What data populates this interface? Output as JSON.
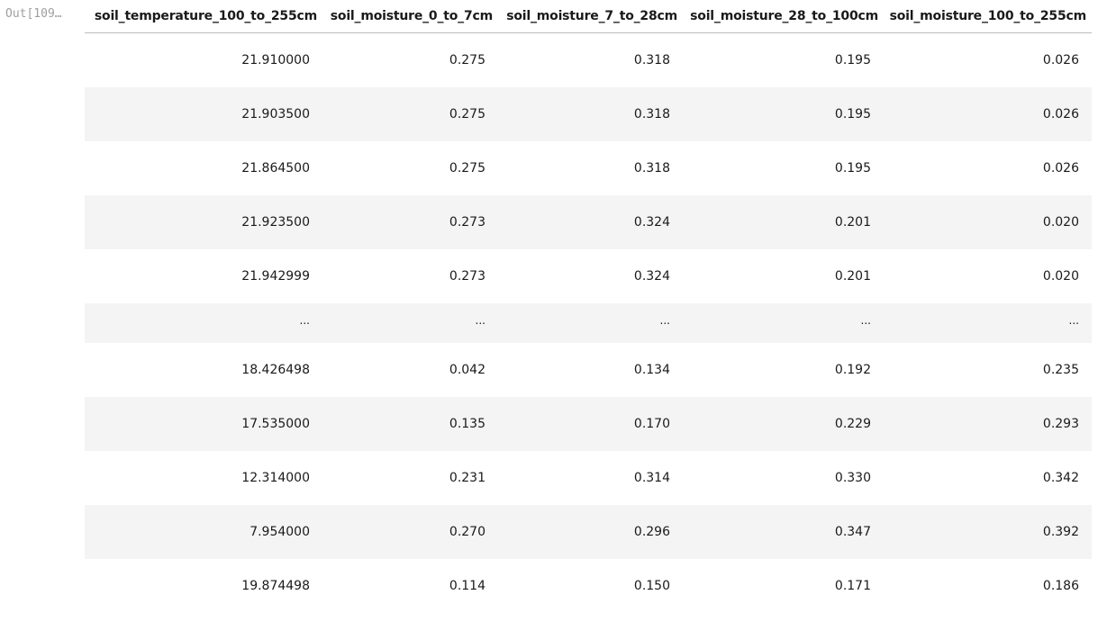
{
  "prompt": "Out[109…",
  "columns": [
    "soil_temperature_100_to_255cm",
    "soil_moisture_0_to_7cm",
    "soil_moisture_7_to_28cm",
    "soil_moisture_28_to_100cm",
    "soil_moisture_100_to_255cm"
  ],
  "rows": [
    [
      "21.910000",
      "0.275",
      "0.318",
      "0.195",
      "0.026"
    ],
    [
      "21.903500",
      "0.275",
      "0.318",
      "0.195",
      "0.026"
    ],
    [
      "21.864500",
      "0.275",
      "0.318",
      "0.195",
      "0.026"
    ],
    [
      "21.923500",
      "0.273",
      "0.324",
      "0.201",
      "0.020"
    ],
    [
      "21.942999",
      "0.273",
      "0.324",
      "0.201",
      "0.020"
    ],
    [
      "...",
      "...",
      "...",
      "...",
      "..."
    ],
    [
      "18.426498",
      "0.042",
      "0.134",
      "0.192",
      "0.235"
    ],
    [
      "17.535000",
      "0.135",
      "0.170",
      "0.229",
      "0.293"
    ],
    [
      "12.314000",
      "0.231",
      "0.314",
      "0.330",
      "0.342"
    ],
    [
      "7.954000",
      "0.270",
      "0.296",
      "0.347",
      "0.392"
    ],
    [
      "19.874498",
      "0.114",
      "0.150",
      "0.171",
      "0.186"
    ]
  ],
  "colors": {
    "stripe": "#f4f4f4",
    "prompt": "#9e9e9e",
    "header_rule": "#bdbdbd"
  }
}
